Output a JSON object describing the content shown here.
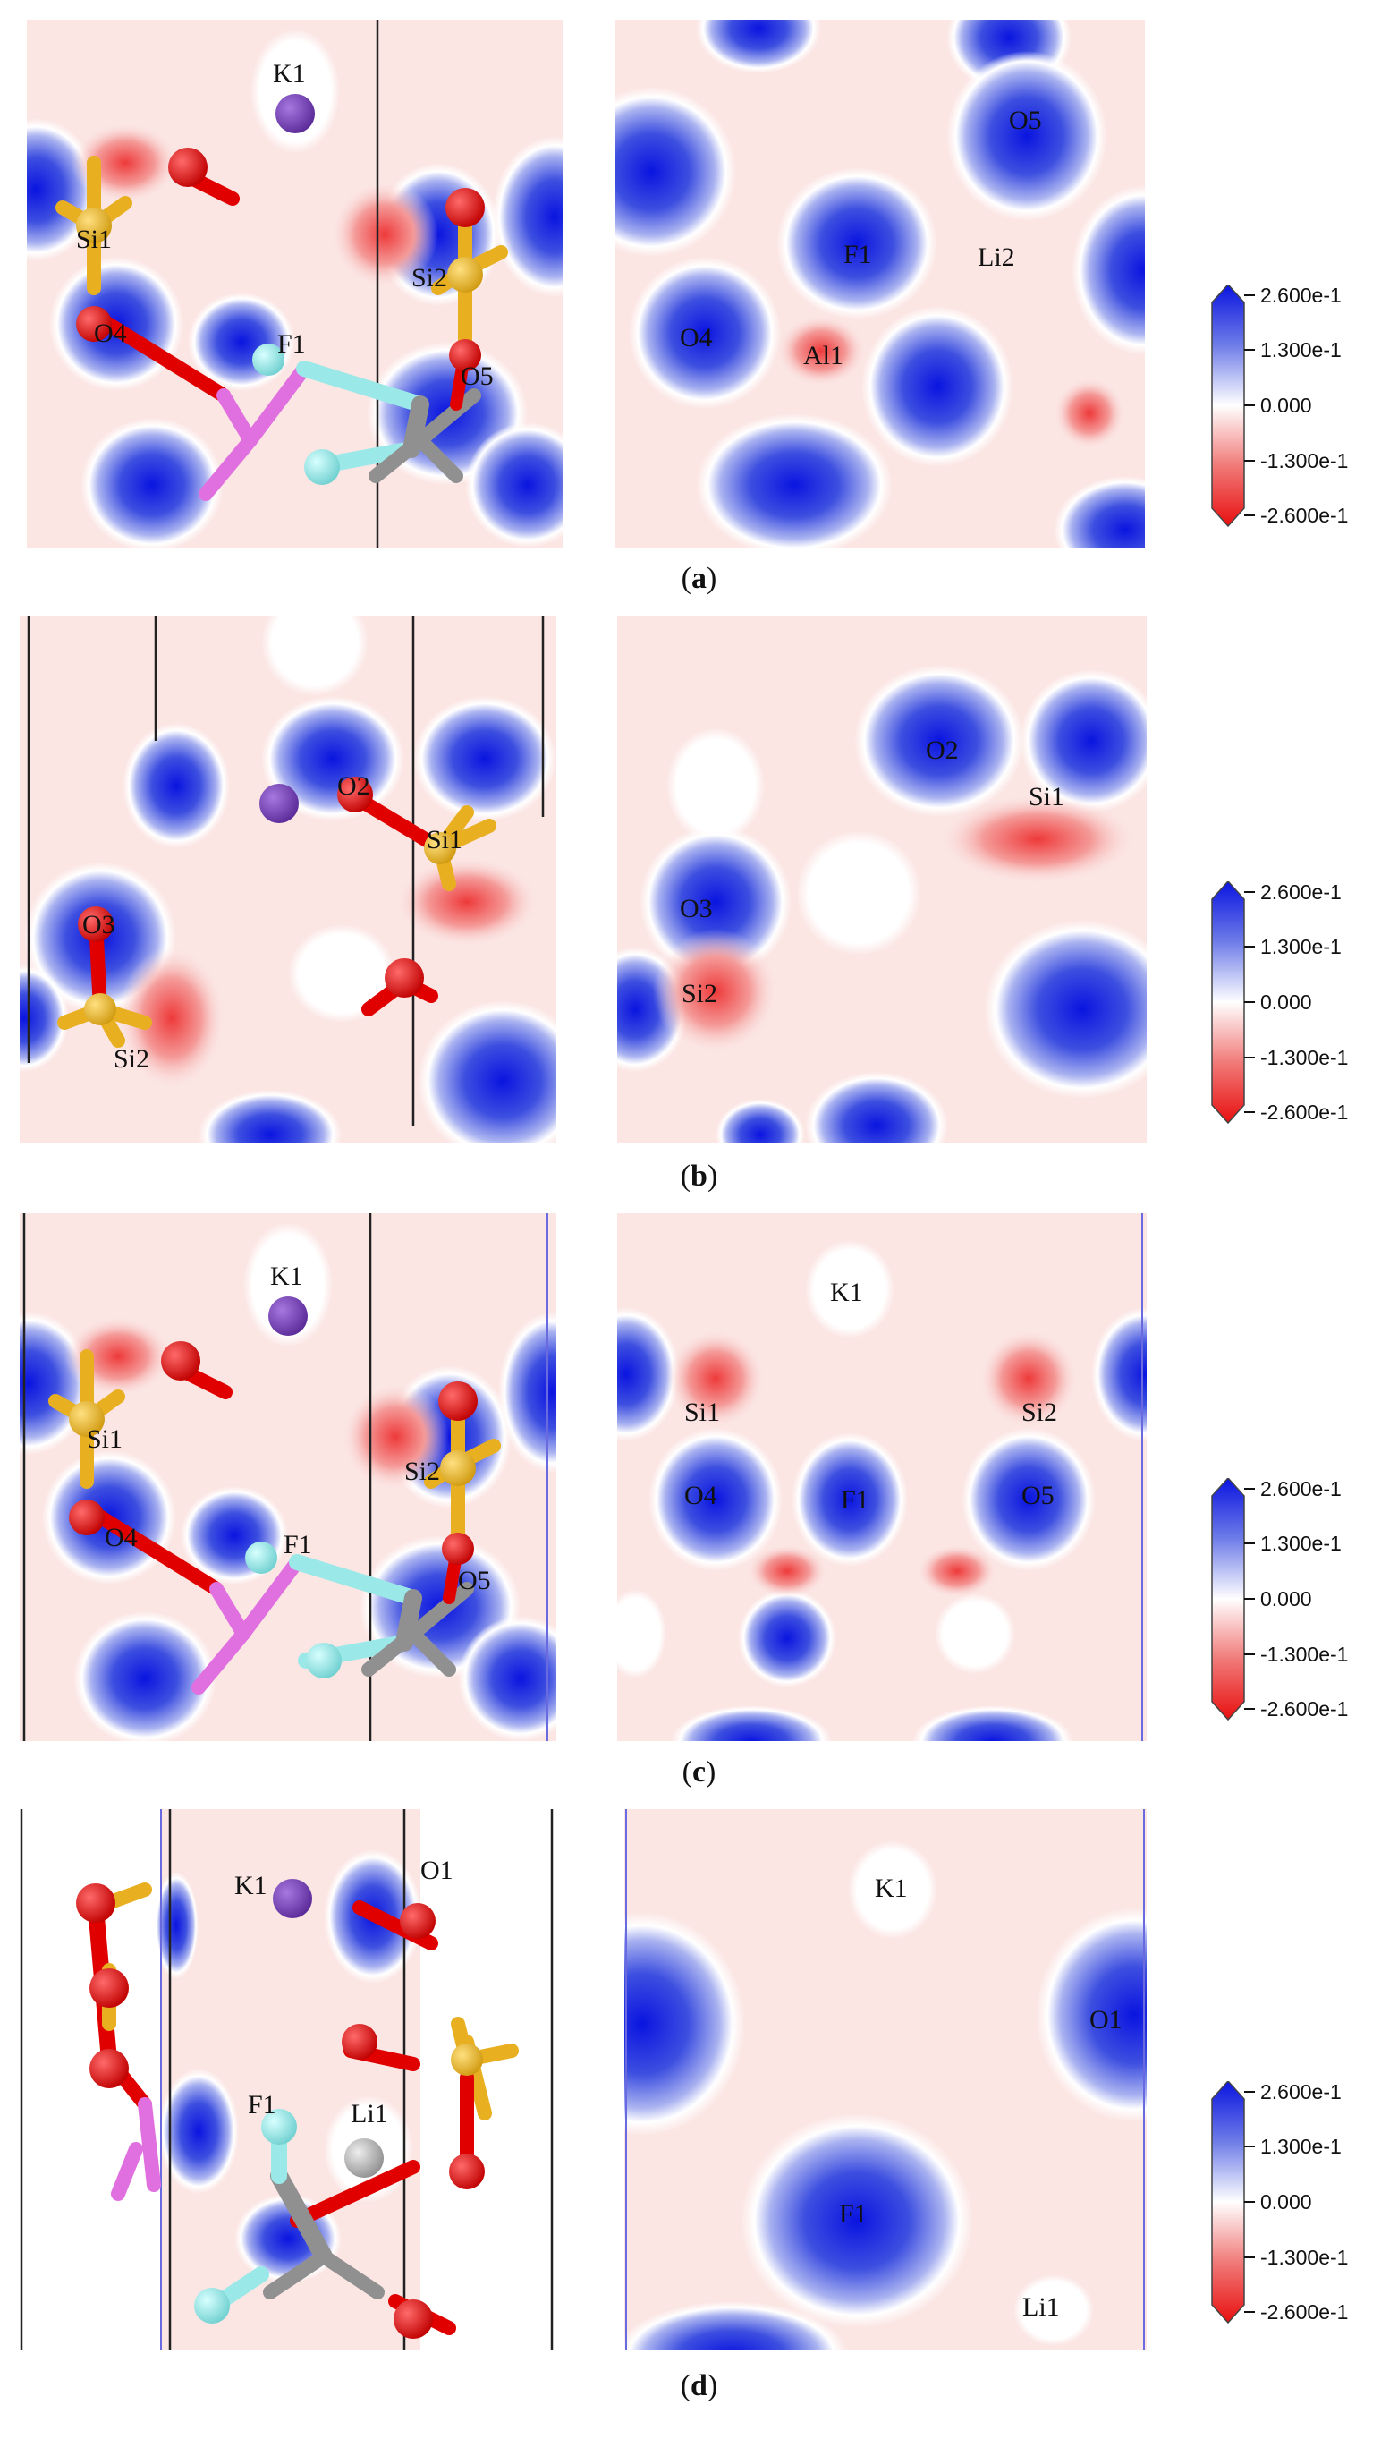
{
  "panels": [
    {
      "id": "a",
      "caption": "a",
      "left_labels": [
        "K1",
        "Si1",
        "Si2",
        "O4",
        "F1",
        "O5"
      ],
      "right_labels": [
        "O5",
        "F1",
        "Li2",
        "O4",
        "Al1"
      ]
    },
    {
      "id": "b",
      "caption": "b",
      "left_labels": [
        "O2",
        "Si1",
        "O3",
        "Si2"
      ],
      "right_labels": [
        "O2",
        "Si1",
        "O3",
        "Si2"
      ]
    },
    {
      "id": "c",
      "caption": "c",
      "left_labels": [
        "K1",
        "Si1",
        "Si2",
        "O4",
        "F1",
        "O5"
      ],
      "right_labels": [
        "K1",
        "Si1",
        "Si2",
        "O4",
        "F1",
        "O5"
      ]
    },
    {
      "id": "d",
      "caption": "d",
      "left_labels": [
        "K1",
        "O1",
        "F1",
        "Li1"
      ],
      "right_labels": [
        "K1",
        "O1",
        "F1",
        "Li1"
      ]
    }
  ],
  "colorbar": {
    "ticks": [
      "2.600e-1",
      "1.300e-1",
      "0.000",
      "-1.300e-1",
      "-2.600e-1"
    ],
    "colors": {
      "max": "#1020d8",
      "mid": "#ffffff",
      "min": "#e81010"
    }
  },
  "colors": {
    "oxygen": "#e00000",
    "silicon": "#e8b020",
    "potassium": "#7a3fb8",
    "fluorine": "#9be8e8",
    "aluminum": "#e070e0",
    "carbon": "#909090",
    "lithium": "#c0c0c0",
    "background": "#fbe6e4"
  }
}
